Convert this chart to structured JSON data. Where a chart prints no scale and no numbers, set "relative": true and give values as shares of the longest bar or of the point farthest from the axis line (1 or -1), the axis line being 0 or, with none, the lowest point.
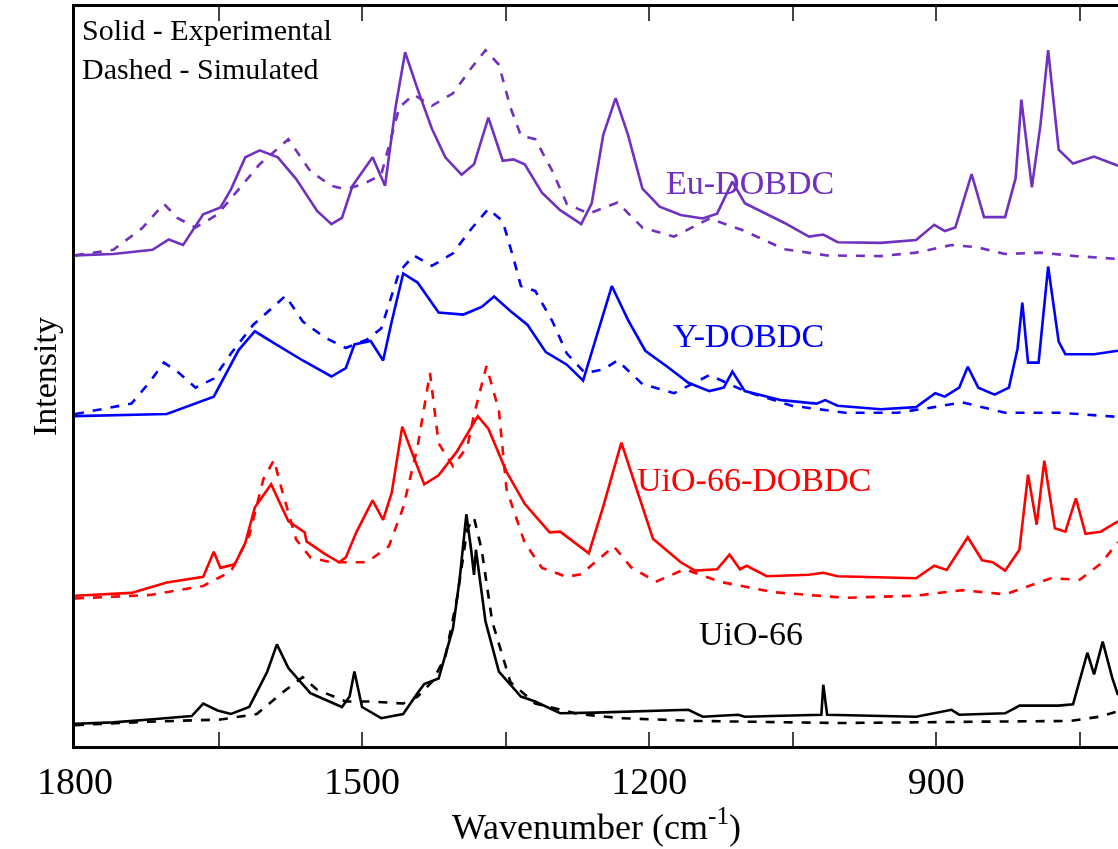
{
  "chart_data": {
    "type": "line",
    "relative": true,
    "xlabel": "Wavenumber (cm$^{-1}$)",
    "ylabel": "Intensity",
    "xlim": [
      1800,
      710
    ],
    "xticks": [
      1800,
      {
        "value": 1650,
        "label": null
      },
      1500,
      {
        "value": 1350,
        "label": null
      },
      1200,
      {
        "value": 1050,
        "label": null
      },
      900,
      {
        "value": 750,
        "label": null
      }
    ],
    "legend": false,
    "marker": "none",
    "annotations": [
      "Solid - Experimental\nDashed - Simulated"
    ],
    "series": [
      {
        "name": "Eu-DOBDC",
        "color": "#7030c0",
        "line_style": "solid",
        "x": [
          1800,
          1760,
          1719,
          1702,
          1687,
          1666,
          1648,
          1637,
          1622,
          1607,
          1588,
          1569,
          1547,
          1532,
          1521,
          1510,
          1489,
          1476,
          1465,
          1455,
          1442,
          1427,
          1413,
          1396,
          1383,
          1368,
          1353,
          1342,
          1330,
          1312,
          1293,
          1271,
          1260,
          1248,
          1235,
          1222,
          1207,
          1189,
          1167,
          1144,
          1129,
          1113,
          1100,
          1059,
          1033,
          1018,
          1003,
          958,
          921,
          902,
          891,
          880,
          863,
          850,
          828,
          817,
          811,
          800,
          791,
          783,
          772,
          757,
          735,
          710
        ],
        "values": [
          0.705,
          0.707,
          0.713,
          0.728,
          0.72,
          0.764,
          0.774,
          0.8,
          0.846,
          0.856,
          0.846,
          0.815,
          0.769,
          0.75,
          0.759,
          0.805,
          0.846,
          0.805,
          0.918,
          0.997,
          0.944,
          0.887,
          0.846,
          0.821,
          0.836,
          0.903,
          0.841,
          0.843,
          0.836,
          0.795,
          0.77,
          0.75,
          0.78,
          0.878,
          0.931,
          0.878,
          0.801,
          0.775,
          0.763,
          0.758,
          0.765,
          0.811,
          0.78,
          0.752,
          0.732,
          0.735,
          0.724,
          0.723,
          0.727,
          0.749,
          0.74,
          0.745,
          0.822,
          0.76,
          0.76,
          0.816,
          0.929,
          0.803,
          0.893,
          1.0,
          0.857,
          0.837,
          0.847,
          0.834
        ]
      },
      {
        "color": "#7030c0",
        "line_style": "dashed",
        "x": [
          1800,
          1760,
          1730,
          1707,
          1693,
          1674,
          1651,
          1629,
          1607,
          1577,
          1554,
          1532,
          1517,
          1498,
          1480,
          1461,
          1446,
          1427,
          1405,
          1386,
          1371,
          1357,
          1345,
          1334,
          1319,
          1301,
          1286,
          1263,
          1233,
          1207,
          1174,
          1137,
          1100,
          1059,
          1014,
          958,
          921,
          884,
          858,
          828,
          791,
          754,
          710
        ],
        "values": [
          0.705,
          0.713,
          0.744,
          0.779,
          0.759,
          0.745,
          0.764,
          0.8,
          0.836,
          0.872,
          0.826,
          0.805,
          0.8,
          0.808,
          0.821,
          0.918,
          0.936,
          0.92,
          0.938,
          0.974,
          1.0,
          0.979,
          0.918,
          0.877,
          0.872,
          0.826,
          0.779,
          0.765,
          0.781,
          0.745,
          0.732,
          0.758,
          0.74,
          0.714,
          0.705,
          0.704,
          0.709,
          0.72,
          0.717,
          0.707,
          0.709,
          0.704,
          0.7
        ]
      },
      {
        "name": "Y-DOBDC",
        "color": "#0000ff",
        "line_style": "solid",
        "x": [
          1800,
          1704,
          1655,
          1629,
          1612,
          1592,
          1562,
          1532,
          1517,
          1508,
          1491,
          1478,
          1469,
          1457,
          1442,
          1420,
          1394,
          1375,
          1362,
          1345,
          1327,
          1308,
          1286,
          1269,
          1256,
          1239,
          1222,
          1204,
          1181,
          1159,
          1137,
          1122,
          1113,
          1100,
          1062,
          1025,
          1016,
          1003,
          958,
          921,
          901,
          891,
          876,
          867,
          856,
          839,
          824,
          815,
          810,
          804,
          793,
          783,
          772,
          765,
          735,
          710
        ],
        "values": [
          0.474,
          0.477,
          0.502,
          0.569,
          0.596,
          0.579,
          0.554,
          0.531,
          0.543,
          0.577,
          0.582,
          0.554,
          0.61,
          0.679,
          0.666,
          0.623,
          0.62,
          0.631,
          0.646,
          0.625,
          0.605,
          0.566,
          0.548,
          0.525,
          0.584,
          0.661,
          0.612,
          0.568,
          0.545,
          0.522,
          0.51,
          0.515,
          0.538,
          0.51,
          0.497,
          0.492,
          0.497,
          0.489,
          0.484,
          0.487,
          0.507,
          0.502,
          0.515,
          0.545,
          0.515,
          0.505,
          0.515,
          0.571,
          0.637,
          0.551,
          0.551,
          0.689,
          0.581,
          0.563,
          0.563,
          0.568
        ]
      },
      {
        "color": "#0000ff",
        "line_style": "dashed",
        "x": [
          1800,
          1741,
          1722,
          1707,
          1693,
          1674,
          1655,
          1637,
          1614,
          1580,
          1562,
          1539,
          1517,
          1495,
          1480,
          1461,
          1446,
          1427,
          1405,
          1386,
          1368,
          1353,
          1342,
          1334,
          1319,
          1301,
          1286,
          1267,
          1248,
          1233,
          1207,
          1174,
          1137,
          1100,
          1051,
          995,
          940,
          902,
          873,
          828,
          772,
          710
        ],
        "values": [
          0.477,
          0.492,
          0.523,
          0.551,
          0.538,
          0.515,
          0.528,
          0.564,
          0.605,
          0.647,
          0.61,
          0.587,
          0.572,
          0.584,
          0.6,
          0.682,
          0.705,
          0.69,
          0.708,
          0.743,
          0.772,
          0.754,
          0.702,
          0.661,
          0.654,
          0.61,
          0.564,
          0.536,
          0.541,
          0.554,
          0.52,
          0.507,
          0.533,
          0.51,
          0.489,
          0.479,
          0.479,
          0.487,
          0.494,
          0.479,
          0.479,
          0.473
        ]
      },
      {
        "name": "UiO-66-DOBDC",
        "color": "#ff0000",
        "line_style": "solid",
        "x": [
          1800,
          1741,
          1704,
          1666,
          1655,
          1648,
          1633,
          1622,
          1612,
          1595,
          1577,
          1560,
          1558,
          1539,
          1524,
          1517,
          1506,
          1489,
          1478,
          1469,
          1458,
          1446,
          1435,
          1420,
          1401,
          1379,
          1368,
          1349,
          1330,
          1304,
          1293,
          1263,
          1248,
          1229,
          1213,
          1196,
          1167,
          1152,
          1129,
          1116,
          1105,
          1098,
          1077,
          1033,
          1018,
          1003,
          921,
          902,
          889,
          867,
          852,
          841,
          828,
          813,
          804,
          795,
          787,
          776,
          765,
          754,
          744,
          728,
          710
        ],
        "values": [
          0.216,
          0.22,
          0.235,
          0.243,
          0.279,
          0.256,
          0.261,
          0.292,
          0.343,
          0.376,
          0.323,
          0.307,
          0.294,
          0.276,
          0.264,
          0.271,
          0.307,
          0.353,
          0.325,
          0.364,
          0.459,
          0.415,
          0.376,
          0.389,
          0.423,
          0.474,
          0.456,
          0.394,
          0.348,
          0.307,
          0.308,
          0.277,
          0.344,
          0.436,
          0.369,
          0.298,
          0.264,
          0.252,
          0.254,
          0.275,
          0.254,
          0.259,
          0.244,
          0.246,
          0.249,
          0.244,
          0.241,
          0.259,
          0.253,
          0.3,
          0.267,
          0.264,
          0.252,
          0.282,
          0.39,
          0.318,
          0.41,
          0.313,
          0.308,
          0.356,
          0.305,
          0.308,
          0.323
        ]
      },
      {
        "color": "#ff0000",
        "line_style": "dashed",
        "x": [
          1800,
          1722,
          1666,
          1637,
          1618,
          1603,
          1592,
          1584,
          1569,
          1554,
          1532,
          1495,
          1472,
          1457,
          1442,
          1429,
          1420,
          1405,
          1390,
          1383,
          1370,
          1357,
          1349,
          1330,
          1312,
          1286,
          1271,
          1237,
          1219,
          1193,
          1163,
          1126,
          1070,
          995,
          921,
          873,
          828,
          780,
          750,
          728,
          710
        ],
        "values": [
          0.212,
          0.217,
          0.23,
          0.251,
          0.302,
          0.384,
          0.411,
          0.369,
          0.297,
          0.271,
          0.264,
          0.264,
          0.287,
          0.343,
          0.43,
          0.536,
          0.435,
          0.402,
          0.43,
          0.476,
          0.546,
          0.482,
          0.369,
          0.292,
          0.256,
          0.243,
          0.247,
          0.287,
          0.257,
          0.236,
          0.254,
          0.236,
          0.221,
          0.213,
          0.216,
          0.224,
          0.218,
          0.241,
          0.239,
          0.262,
          0.293
        ]
      },
      {
        "name": "UiO-66",
        "color": "#000000",
        "line_style": "solid",
        "x": [
          1800,
          1760,
          1722,
          1678,
          1666,
          1651,
          1637,
          1618,
          1599,
          1589,
          1577,
          1554,
          1521,
          1513,
          1508,
          1500,
          1480,
          1457,
          1442,
          1435,
          1420,
          1405,
          1398,
          1391,
          1386,
          1383,
          1381,
          1371,
          1357,
          1334,
          1319,
          1293,
          1256,
          1159,
          1144,
          1107,
          1100,
          1020,
          1018,
          1014,
          921,
          884,
          876,
          828,
          813,
          772,
          757,
          742,
          735,
          726,
          716,
          710
        ],
        "values": [
          0.032,
          0.034,
          0.038,
          0.043,
          0.061,
          0.051,
          0.046,
          0.056,
          0.107,
          0.146,
          0.112,
          0.076,
          0.056,
          0.071,
          0.107,
          0.056,
          0.04,
          0.046,
          0.076,
          0.089,
          0.097,
          0.169,
          0.24,
          0.333,
          0.282,
          0.246,
          0.282,
          0.179,
          0.107,
          0.071,
          0.064,
          0.047,
          0.048,
          0.052,
          0.042,
          0.045,
          0.042,
          0.045,
          0.088,
          0.045,
          0.042,
          0.052,
          0.045,
          0.047,
          0.058,
          0.058,
          0.06,
          0.134,
          0.103,
          0.15,
          0.098,
          0.073
        ]
      },
      {
        "color": "#000000",
        "line_style": "dashed",
        "x": [
          1800,
          1722,
          1648,
          1610,
          1584,
          1562,
          1547,
          1517,
          1491,
          1457,
          1442,
          1427,
          1413,
          1401,
          1390,
          1383,
          1375,
          1364,
          1345,
          1319,
          1274,
          1230,
          1150,
          1000,
          850,
          760,
          730,
          710
        ],
        "values": [
          0.03,
          0.035,
          0.038,
          0.046,
          0.076,
          0.099,
          0.081,
          0.064,
          0.064,
          0.061,
          0.071,
          0.092,
          0.128,
          0.21,
          0.312,
          0.328,
          0.282,
          0.179,
          0.092,
          0.061,
          0.046,
          0.04,
          0.036,
          0.033,
          0.035,
          0.036,
          0.042,
          0.05
        ]
      }
    ]
  }
}
